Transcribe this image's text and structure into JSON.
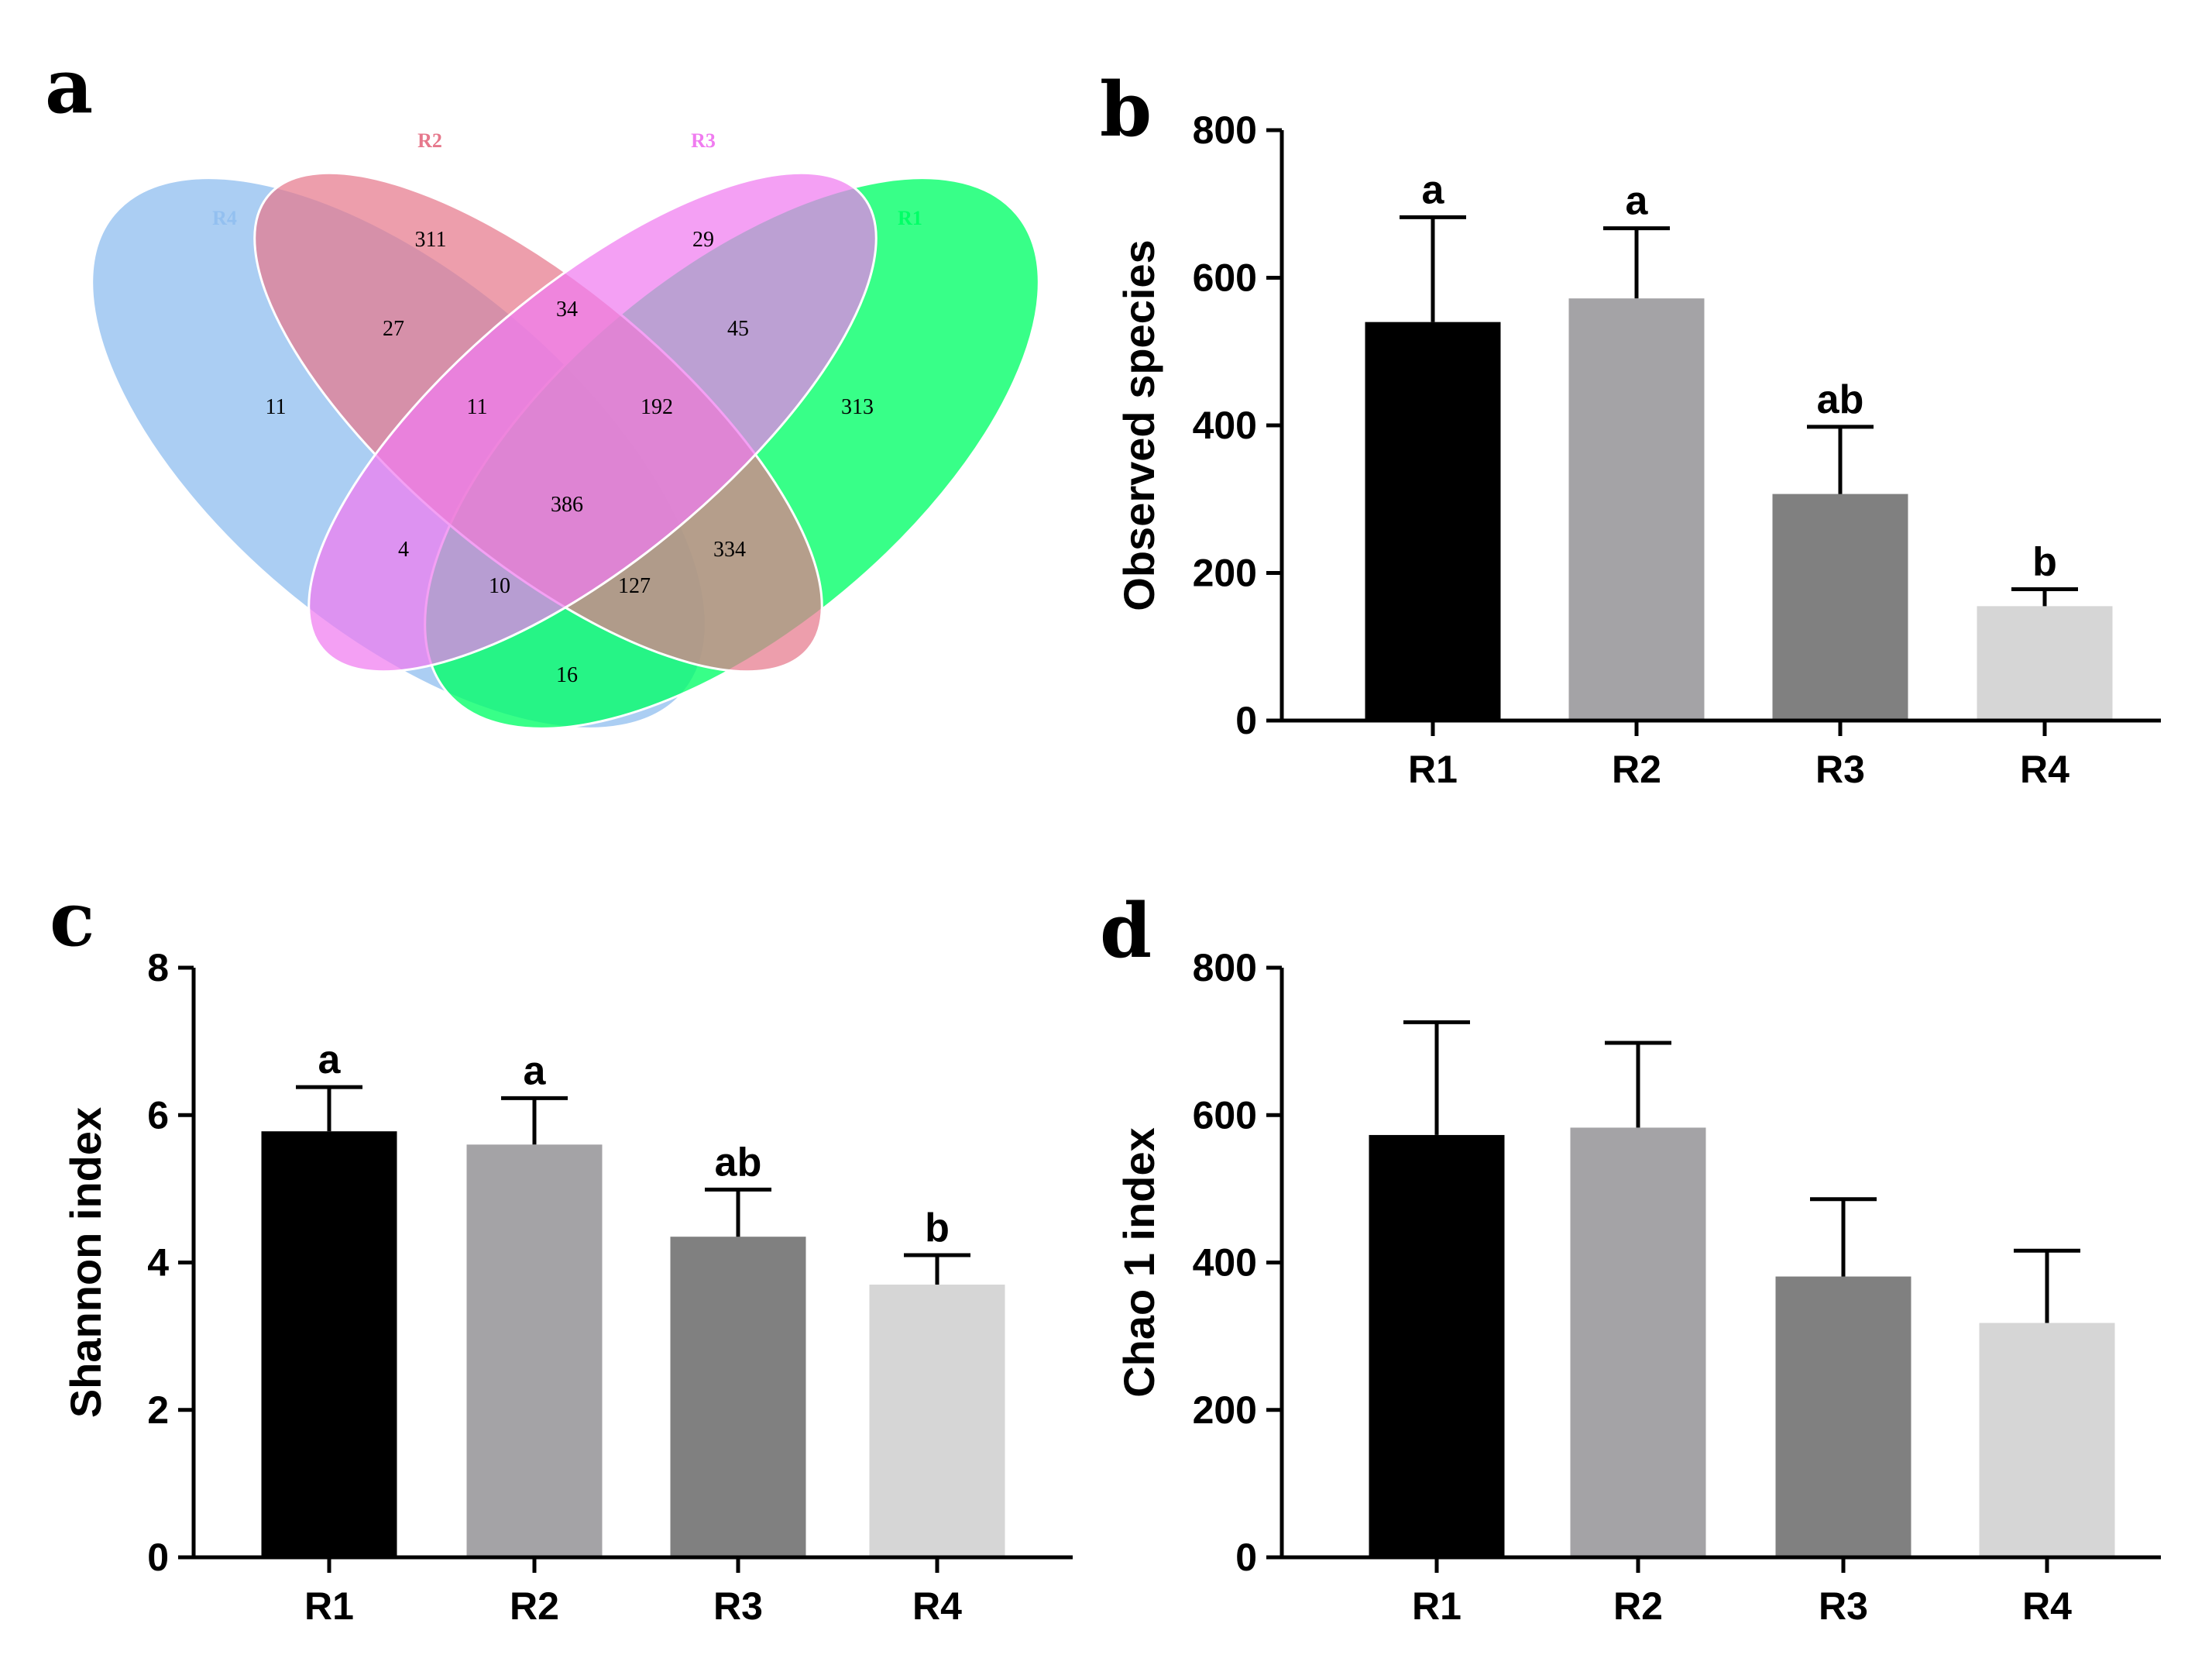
{
  "panels": {
    "a": {
      "letter": "a"
    },
    "b": {
      "letter": "b"
    },
    "c": {
      "letter": "c"
    },
    "d": {
      "letter": "d"
    }
  },
  "venn": {
    "sets": [
      {
        "key": "R1",
        "label": "R1",
        "color": "#00ff66"
      },
      {
        "key": "R2",
        "label": "R2",
        "color": "#e6788c"
      },
      {
        "key": "R3",
        "label": "R3",
        "color": "#f07cf0"
      },
      {
        "key": "R4",
        "label": "R4",
        "color": "#93c0f0"
      }
    ],
    "regions": [
      {
        "sets": [
          "R4"
        ],
        "value": "11"
      },
      {
        "sets": [
          "R2"
        ],
        "value": "311"
      },
      {
        "sets": [
          "R3"
        ],
        "value": "29"
      },
      {
        "sets": [
          "R1"
        ],
        "value": "313"
      },
      {
        "sets": [
          "R2",
          "R4"
        ],
        "value": "27"
      },
      {
        "sets": [
          "R2",
          "R3"
        ],
        "value": "34"
      },
      {
        "sets": [
          "R1",
          "R3"
        ],
        "value": "45"
      },
      {
        "sets": [
          "R2",
          "R3",
          "R4"
        ],
        "value": "11"
      },
      {
        "sets": [
          "R1",
          "R2",
          "R3"
        ],
        "value": "192"
      },
      {
        "sets": [
          "R3",
          "R4"
        ],
        "value": "4"
      },
      {
        "sets": [
          "R1",
          "R2",
          "R3",
          "R4"
        ],
        "value": "386"
      },
      {
        "sets": [
          "R1",
          "R2"
        ],
        "value": "334"
      },
      {
        "sets": [
          "R1",
          "R3",
          "R4"
        ],
        "value": "10"
      },
      {
        "sets": [
          "R1",
          "R2",
          "R4"
        ],
        "value": "127"
      },
      {
        "sets": [
          "R1",
          "R4"
        ],
        "value": "16"
      }
    ]
  },
  "chart_data": [
    {
      "panel": "b",
      "type": "bar",
      "categories": [
        "R1",
        "R2",
        "R3",
        "R4"
      ],
      "values": [
        540,
        572,
        307,
        155
      ],
      "error_upper": [
        682,
        667,
        398,
        178
      ],
      "significance": [
        "a",
        "a",
        "ab",
        "b"
      ],
      "colors": [
        "#000000",
        "#a4a3a6",
        "#808080",
        "#d6d6d6"
      ],
      "ylabel": "Observed species",
      "xlabel": "",
      "ylim": [
        0,
        800
      ],
      "yticks": [
        "0",
        "200",
        "400",
        "600",
        "800"
      ],
      "grid": false
    },
    {
      "panel": "c",
      "type": "bar",
      "categories": [
        "R1",
        "R2",
        "R3",
        "R4"
      ],
      "values": [
        5.78,
        5.6,
        4.35,
        3.7
      ],
      "error_upper": [
        6.38,
        6.23,
        4.99,
        4.1
      ],
      "significance": [
        "a",
        "a",
        "ab",
        "b"
      ],
      "colors": [
        "#000000",
        "#a4a3a6",
        "#808080",
        "#d6d6d6"
      ],
      "ylabel": "Shannon index",
      "xlabel": "",
      "ylim": [
        0,
        8
      ],
      "yticks": [
        "0",
        "2",
        "4",
        "6",
        "8"
      ],
      "grid": false
    },
    {
      "panel": "d",
      "type": "bar",
      "categories": [
        "R1",
        "R2",
        "R3",
        "R4"
      ],
      "values": [
        573,
        583,
        381,
        318
      ],
      "error_upper": [
        726,
        698,
        486,
        416
      ],
      "significance": [
        "",
        "",
        "",
        ""
      ],
      "colors": [
        "#000000",
        "#a4a3a6",
        "#808080",
        "#d6d6d6"
      ],
      "ylabel": "Chao 1 index",
      "xlabel": "",
      "ylim": [
        0,
        800
      ],
      "yticks": [
        "0",
        "200",
        "400",
        "600",
        "800"
      ],
      "grid": false
    }
  ]
}
